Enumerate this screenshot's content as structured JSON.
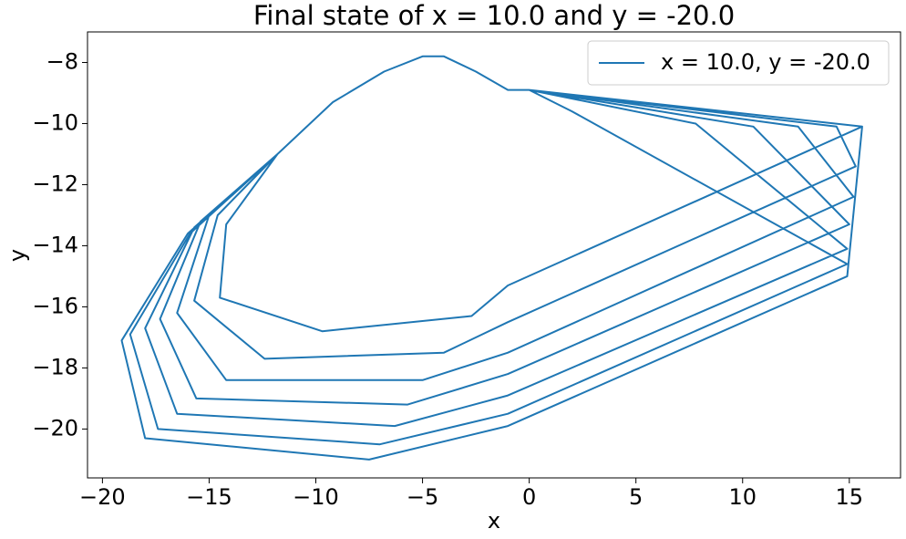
{
  "chart_data": {
    "type": "line",
    "title": "Final state of x = 10.0 and y = -20.0",
    "xlabel": "x",
    "ylabel": "y",
    "series": [
      {
        "name": "x = 10.0, y = -20.0",
        "color": "#1f77b4",
        "x": [
          15.6,
          -1,
          -2.7,
          -9.7,
          -14.5,
          -14.2,
          -11.8,
          -9.2,
          -6.8,
          -5,
          -4,
          -2.5,
          -1,
          0,
          14.4,
          15.3,
          -1,
          -4,
          -12.4,
          -15.7,
          -14.6,
          -11.8,
          -9.2,
          -6.8,
          -5,
          -4,
          -2.5,
          -1,
          0,
          12.6,
          15.2,
          -1,
          -5,
          -14.2,
          -16.5,
          -15,
          -11.8,
          -9.2,
          -6.8,
          -5,
          -4,
          -2.5,
          -1,
          0,
          10.5,
          15,
          -1,
          -5.7,
          -15.6,
          -17.3,
          -15.4,
          -11.8,
          -9.2,
          -6.8,
          -5,
          -4,
          -2.5,
          -1,
          0,
          7.8,
          14.9,
          -1,
          -6.3,
          -16.5,
          -18,
          -15.7,
          -11.8,
          -9.2,
          -6.8,
          -5,
          -4,
          -2.5,
          -1,
          0,
          2,
          14.9,
          -1,
          -7,
          -17.4,
          -18.7,
          -15.9,
          -11.8,
          -9.2,
          -6.8,
          -5,
          -4,
          -2.5,
          -1,
          0,
          15.6,
          14.9,
          -1,
          -7.5,
          -18,
          -19.1,
          -16,
          -11.8,
          -9.2,
          -6.8,
          -5,
          -4,
          -2.5,
          -1,
          0
        ],
        "values": [
          -10.1,
          -15.3,
          -16.3,
          -16.8,
          -15.7,
          -13.3,
          -11,
          -9.3,
          -8.3,
          -7.8,
          -7.8,
          -8.3,
          -8.9,
          -8.9,
          -10.1,
          -11.4,
          -16.5,
          -17.5,
          -17.7,
          -15.8,
          -13.0,
          -11,
          -9.3,
          -8.3,
          -7.8,
          -7.8,
          -8.3,
          -8.9,
          -8.9,
          -10.1,
          -12.4,
          -17.5,
          -18.4,
          -18.4,
          -16.2,
          -13.0,
          -11,
          -9.3,
          -8.3,
          -7.8,
          -7.8,
          -8.3,
          -8.9,
          -8.9,
          -10.1,
          -13.3,
          -18.2,
          -19.2,
          -19.0,
          -16.4,
          -13.2,
          -11,
          -9.3,
          -8.3,
          -7.8,
          -7.8,
          -8.3,
          -8.9,
          -8.9,
          -10.0,
          -14.1,
          -18.9,
          -19.9,
          -19.5,
          -16.7,
          -13.4,
          -11,
          -9.3,
          -8.3,
          -7.8,
          -7.8,
          -8.3,
          -8.9,
          -8.9,
          -9.6,
          -14.6,
          -19.5,
          -20.5,
          -20.0,
          -16.9,
          -13.6,
          -11,
          -9.3,
          -8.3,
          -7.8,
          -7.8,
          -8.3,
          -8.9,
          -8.9,
          -10.1,
          -15.0,
          -19.9,
          -21.0,
          -20.3,
          -17.1,
          -13.6,
          -11,
          -9.3,
          -8.3,
          -7.8,
          -7.8,
          -8.3,
          -8.9,
          -8.9
        ]
      }
    ],
    "xlim": [
      -20.7,
      17.4
    ],
    "ylim": [
      -21.6,
      -7.0
    ],
    "xticks": [
      {
        "value": -20,
        "label": "−20"
      },
      {
        "value": -15,
        "label": "−15"
      },
      {
        "value": -10,
        "label": "−10"
      },
      {
        "value": -5,
        "label": "−5"
      },
      0,
      5,
      10,
      15
    ],
    "yticks": [
      {
        "value": -20,
        "label": "−20"
      },
      {
        "value": -18,
        "label": "−18"
      },
      {
        "value": -16,
        "label": "−16"
      },
      {
        "value": -14,
        "label": "−14"
      },
      {
        "value": -12,
        "label": "−12"
      },
      {
        "value": -10,
        "label": "−10"
      },
      {
        "value": -8,
        "label": "−8"
      }
    ],
    "legend": "upper right",
    "grid": false
  }
}
